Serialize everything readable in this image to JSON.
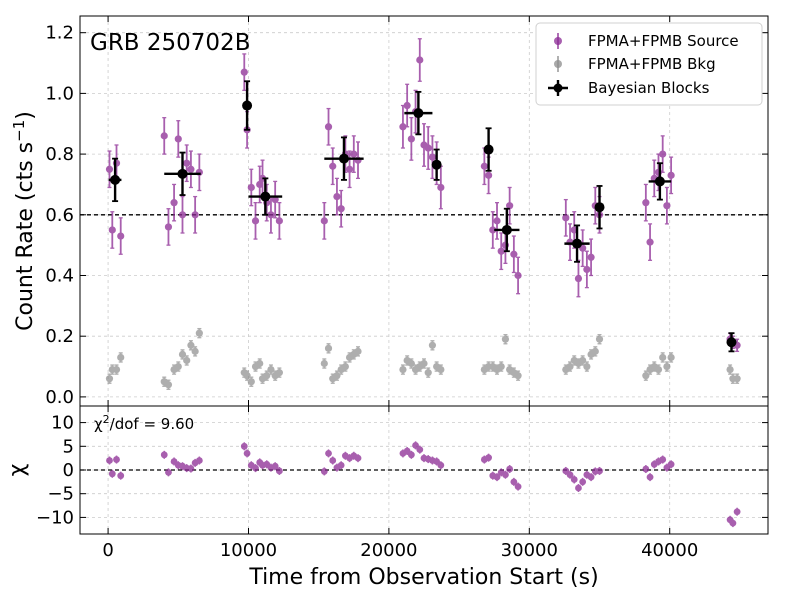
{
  "chart_data": {
    "type": "scatter",
    "title": "GRB 250702B",
    "xlabel": "Time from Observation Start (s)",
    "top_panel": {
      "ylabel": "Count Rate (cts s",
      "ylabel_sup": "−1",
      "ylabel_end": ")",
      "ylim": [
        -0.03,
        1.255
      ],
      "yticks": [
        0.0,
        0.2,
        0.4,
        0.6,
        0.8,
        1.0,
        1.2
      ],
      "ytick_labels": [
        "0.0",
        "0.2",
        "0.4",
        "0.6",
        "0.8",
        "1.0",
        "1.2"
      ],
      "mean_line": 0.6,
      "grid": true,
      "legend_position": "top-right"
    },
    "bottom_panel": {
      "ylabel": "χ",
      "ylim": [
        -13.5,
        13.5
      ],
      "yticks": [
        -10,
        -5,
        0,
        5,
        10
      ],
      "ytick_labels": [
        "−10",
        "−5",
        "0",
        "5",
        "10"
      ],
      "zero_line": 0,
      "annotation_prefix": "χ",
      "annotation_sup": "2",
      "annotation_suffix": "/dof = 9.60"
    },
    "xlim": [
      -2000,
      47000
    ],
    "xticks": [
      0,
      10000,
      20000,
      30000,
      40000
    ],
    "xtick_labels": [
      "0",
      "10000",
      "20000",
      "30000",
      "40000"
    ],
    "legend": [
      "FPMA+FPMB Source",
      "FPMA+FPMB Bkg",
      "Bayesian Blocks"
    ],
    "colors": {
      "source": "#8b2a94",
      "bkg": "#8c8c8c",
      "blocks": "#000000",
      "grid": "#cccccc"
    },
    "series": [
      {
        "name": "FPMA+FPMB Source",
        "x": [
          100,
          300,
          600,
          900,
          4000,
          4300,
          4700,
          5000,
          5300,
          5600,
          5900,
          6200,
          6500,
          9700,
          9900,
          10200,
          10500,
          10800,
          11000,
          11300,
          11600,
          11900,
          12200,
          15400,
          15700,
          16000,
          16300,
          16600,
          16900,
          17200,
          17500,
          17800,
          21000,
          21300,
          21600,
          21900,
          22200,
          22500,
          22800,
          23100,
          23400,
          23700,
          26800,
          27100,
          27400,
          27700,
          28000,
          28300,
          28600,
          28900,
          29200,
          32600,
          32900,
          33200,
          33500,
          33800,
          34100,
          34400,
          34700,
          35000,
          38300,
          38600,
          38900,
          39200,
          39500,
          39800,
          40100
        ],
        "y": [
          0.75,
          0.55,
          0.77,
          0.53,
          0.86,
          0.56,
          0.64,
          0.85,
          0.6,
          0.77,
          0.75,
          0.6,
          0.74,
          1.07,
          0.88,
          0.69,
          0.58,
          0.7,
          0.72,
          0.64,
          0.6,
          0.65,
          0.58,
          0.58,
          0.89,
          0.76,
          0.66,
          0.62,
          0.8,
          0.75,
          0.8,
          0.78,
          0.89,
          0.96,
          0.85,
          0.94,
          1.11,
          0.83,
          0.82,
          0.79,
          0.77,
          0.69,
          0.76,
          0.73,
          0.55,
          0.58,
          0.48,
          0.5,
          0.63,
          0.47,
          0.4,
          0.59,
          0.51,
          0.55,
          0.39,
          0.49,
          0.42,
          0.46,
          0.63,
          0.6,
          0.64,
          0.51,
          0.72,
          0.74,
          0.8,
          0.63,
          0.73
        ],
        "err": [
          0.06,
          0.06,
          0.06,
          0.06,
          0.06,
          0.06,
          0.06,
          0.06,
          0.06,
          0.06,
          0.06,
          0.06,
          0.06,
          0.06,
          0.06,
          0.06,
          0.06,
          0.06,
          0.06,
          0.06,
          0.06,
          0.06,
          0.06,
          0.06,
          0.06,
          0.06,
          0.06,
          0.06,
          0.06,
          0.06,
          0.06,
          0.06,
          0.07,
          0.07,
          0.07,
          0.07,
          0.07,
          0.07,
          0.07,
          0.07,
          0.07,
          0.07,
          0.06,
          0.06,
          0.06,
          0.06,
          0.06,
          0.06,
          0.06,
          0.06,
          0.06,
          0.06,
          0.06,
          0.06,
          0.06,
          0.06,
          0.06,
          0.06,
          0.06,
          0.06,
          0.06,
          0.06,
          0.06,
          0.06,
          0.06,
          0.06,
          0.06
        ],
        "chi": [
          2.0,
          -0.8,
          2.2,
          -1.2,
          3.2,
          -0.5,
          1.8,
          1.0,
          0.8,
          0.4,
          0.3,
          1.5,
          2.0,
          5.0,
          3.5,
          1.0,
          0.4,
          1.6,
          1.0,
          1.2,
          0.5,
          0.8,
          -0.2,
          -0.3,
          3.5,
          2.0,
          0.5,
          1.0,
          3.0,
          2.5,
          3.0,
          2.5,
          3.5,
          4.0,
          3.2,
          5.2,
          4.3,
          2.5,
          2.3,
          2.0,
          1.8,
          1.0,
          2.2,
          2.6,
          -1.2,
          -1.5,
          -0.5,
          -1.0,
          0.2,
          -2.5,
          -3.5,
          -0.2,
          -1.0,
          -2.0,
          -3.8,
          -2.5,
          -1.0,
          -1.5,
          -0.3,
          -0.2,
          0.2,
          -1.5,
          1.2,
          1.8,
          2.2,
          0.5,
          1.2
        ]
      },
      {
        "name": "FPMA+FPMB Source",
        "note": "late-time points",
        "x": [
          44300,
          44500,
          44800
        ],
        "y": [
          0.19,
          0.18,
          0.17
        ],
        "err": [
          0.02,
          0.02,
          0.02
        ],
        "chi": [
          -10.5,
          -11.2,
          -8.8
        ]
      },
      {
        "name": "FPMA+FPMB Bkg",
        "x": [
          100,
          300,
          600,
          900,
          4000,
          4300,
          4700,
          5000,
          5300,
          5600,
          5900,
          6200,
          6500,
          9700,
          9900,
          10200,
          10500,
          10800,
          11000,
          11300,
          11600,
          11900,
          12200,
          15400,
          15700,
          16000,
          16300,
          16600,
          16900,
          17200,
          17500,
          17800,
          21000,
          21300,
          21600,
          21900,
          22200,
          22500,
          22800,
          23100,
          23400,
          23700,
          26800,
          27100,
          27400,
          27700,
          28000,
          28300,
          28600,
          28900,
          29200,
          32600,
          32900,
          33200,
          33500,
          33800,
          34100,
          34400,
          34700,
          35000,
          38300,
          38600,
          38900,
          39200,
          39500,
          39800,
          40100,
          44300,
          44500,
          44800
        ],
        "y": [
          0.06,
          0.09,
          0.09,
          0.13,
          0.05,
          0.04,
          0.09,
          0.1,
          0.14,
          0.12,
          0.17,
          0.15,
          0.21,
          0.08,
          0.07,
          0.05,
          0.1,
          0.11,
          0.06,
          0.07,
          0.09,
          0.07,
          0.08,
          0.11,
          0.16,
          0.06,
          0.07,
          0.09,
          0.1,
          0.13,
          0.14,
          0.15,
          0.09,
          0.12,
          0.11,
          0.09,
          0.1,
          0.11,
          0.08,
          0.17,
          0.1,
          0.09,
          0.09,
          0.1,
          0.1,
          0.09,
          0.1,
          0.19,
          0.09,
          0.08,
          0.07,
          0.09,
          0.1,
          0.12,
          0.11,
          0.12,
          0.1,
          0.14,
          0.15,
          0.19,
          0.07,
          0.09,
          0.1,
          0.09,
          0.13,
          0.1,
          0.13,
          0.09,
          0.06,
          0.06
        ],
        "err": [
          0.015,
          0.015,
          0.015,
          0.015,
          0.015,
          0.015,
          0.015,
          0.015,
          0.015,
          0.015,
          0.015,
          0.015,
          0.015,
          0.015,
          0.015,
          0.015,
          0.015,
          0.015,
          0.015,
          0.015,
          0.015,
          0.015,
          0.015,
          0.015,
          0.015,
          0.015,
          0.015,
          0.015,
          0.015,
          0.015,
          0.015,
          0.015,
          0.015,
          0.015,
          0.015,
          0.015,
          0.015,
          0.015,
          0.015,
          0.015,
          0.015,
          0.015,
          0.015,
          0.015,
          0.015,
          0.015,
          0.015,
          0.015,
          0.015,
          0.015,
          0.015,
          0.015,
          0.015,
          0.015,
          0.015,
          0.015,
          0.015,
          0.015,
          0.015,
          0.015,
          0.015,
          0.015,
          0.015,
          0.015,
          0.015,
          0.015,
          0.015,
          0.015,
          0.015,
          0.015
        ]
      },
      {
        "name": "Bayesian Blocks",
        "x": [
          500,
          5300,
          9900,
          11200,
          16800,
          22100,
          23400,
          27100,
          28400,
          33400,
          35000,
          39300,
          44400
        ],
        "xerr": [
          450,
          1300,
          250,
          1200,
          1400,
          1000,
          300,
          250,
          900,
          900,
          200,
          800,
          150
        ],
        "y": [
          0.715,
          0.735,
          0.96,
          0.66,
          0.785,
          0.935,
          0.765,
          0.815,
          0.55,
          0.505,
          0.625,
          0.71,
          0.18
        ],
        "err": [
          0.07,
          0.07,
          0.08,
          0.06,
          0.07,
          0.07,
          0.05,
          0.07,
          0.07,
          0.06,
          0.07,
          0.06,
          0.03
        ]
      }
    ]
  }
}
